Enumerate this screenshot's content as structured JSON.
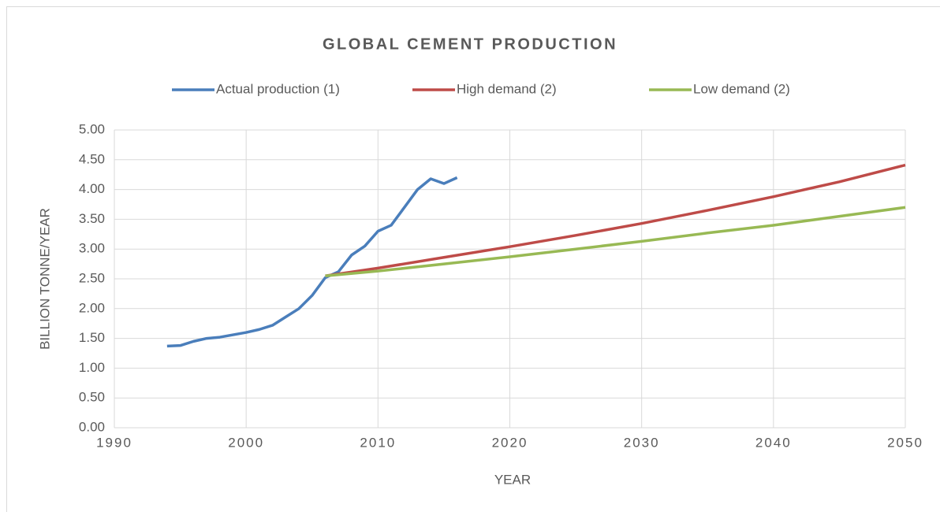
{
  "chart_data": {
    "type": "line",
    "title": "GLOBAL CEMENT PRODUCTION",
    "x_label": "YEAR",
    "y_label": "BILLION TONNE/YEAR",
    "series": [
      {
        "name": "Actual production (1)",
        "color": "#4a7ebb",
        "x": [
          1994,
          1995,
          1996,
          1997,
          1998,
          1999,
          2000,
          2001,
          2002,
          2003,
          2004,
          2005,
          2006,
          2007,
          2008,
          2009,
          2010,
          2011,
          2012,
          2013,
          2014,
          2015,
          2016
        ],
        "values": [
          1.37,
          1.38,
          1.45,
          1.5,
          1.52,
          1.56,
          1.6,
          1.65,
          1.72,
          1.86,
          2.0,
          2.22,
          2.52,
          2.62,
          2.9,
          3.05,
          3.3,
          3.4,
          3.7,
          4.0,
          4.18,
          4.1,
          4.2
        ]
      },
      {
        "name": "High demand (2)",
        "color": "#be4b48",
        "x": [
          2006,
          2010,
          2015,
          2020,
          2025,
          2030,
          2035,
          2040,
          2045,
          2050
        ],
        "values": [
          2.55,
          2.68,
          2.86,
          3.04,
          3.23,
          3.43,
          3.65,
          3.88,
          4.13,
          4.41
        ]
      },
      {
        "name": "Low demand (2)",
        "color": "#98b954",
        "x": [
          2006,
          2010,
          2015,
          2020,
          2025,
          2030,
          2035,
          2040,
          2045,
          2050
        ],
        "values": [
          2.55,
          2.63,
          2.75,
          2.87,
          3.0,
          3.13,
          3.27,
          3.4,
          3.55,
          3.7
        ]
      }
    ],
    "xlim": [
      1990,
      2050
    ],
    "xticks": [
      1990,
      2000,
      2010,
      2020,
      2030,
      2040,
      2050
    ],
    "ylim": [
      0,
      5
    ],
    "yticks": [
      {
        "value": 0,
        "label": "0.00"
      },
      {
        "value": 0.5,
        "label": "0.50"
      },
      {
        "value": 1,
        "label": "1.00"
      },
      {
        "value": 1.5,
        "label": "1.50"
      },
      {
        "value": 2,
        "label": "2.00"
      },
      {
        "value": 2.5,
        "label": "2.50"
      },
      {
        "value": 3,
        "label": "3.00"
      },
      {
        "value": 3.5,
        "label": "3.50"
      },
      {
        "value": 4,
        "label": "4.00"
      },
      {
        "value": 4.5,
        "label": "4.50"
      },
      {
        "value": 5,
        "label": "5.00"
      }
    ],
    "grid": true,
    "legend": "top"
  }
}
